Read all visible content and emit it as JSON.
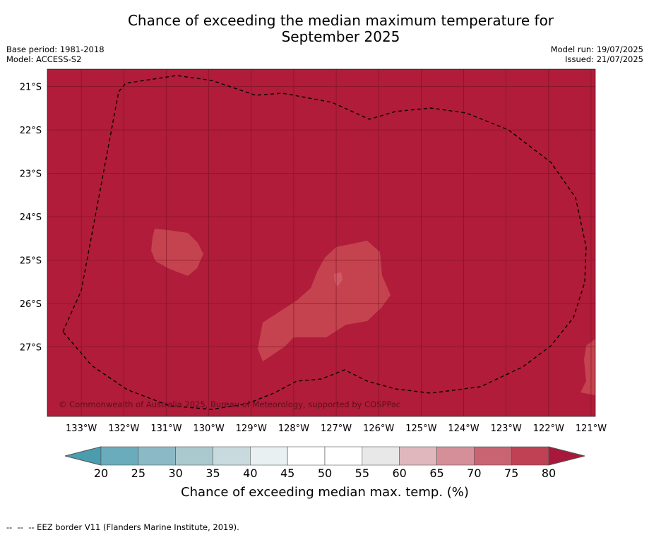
{
  "title": {
    "line1": "Chance of exceeding the median maximum temperature for",
    "line2": "September 2025"
  },
  "meta_left": {
    "base_period": "Base period: 1981-2018",
    "model": "Model: ACCESS-S2"
  },
  "meta_right": {
    "model_run": "Model run: 19/07/2025",
    "issued": "Issued: 21/07/2025"
  },
  "map": {
    "lon_range": [
      -133.8,
      -120.9
    ],
    "lat_range": [
      -28.6,
      -20.6
    ],
    "lat_ticks": [
      "21°S",
      "22°S",
      "23°S",
      "24°S",
      "25°S",
      "26°S",
      "27°S"
    ],
    "lon_ticks": [
      "133°W",
      "132°W",
      "131°W",
      "130°W",
      "129°W",
      "128°W",
      "127°W",
      "126°W",
      "125°W",
      "124°W",
      "123°W",
      "122°W",
      "121°W"
    ],
    "background_color": "#b01c39",
    "patch_color": "#c4434f",
    "copyright": "© Commonwealth of Australia 2025, Bureau of Meteorology, supported by COSPPac",
    "eez_border": "dashed"
  },
  "colorbar": {
    "ticks": [
      "20",
      "25",
      "30",
      "35",
      "40",
      "45",
      "50",
      "55",
      "60",
      "65",
      "70",
      "75",
      "80"
    ],
    "colors": [
      "#6aacbc",
      "#8bbac6",
      "#aac9cf",
      "#c8dadd",
      "#e9f0f2",
      "#ffffff",
      "#ffffff",
      "#e8e8e8",
      "#e0b7bd",
      "#d58f98",
      "#c96572",
      "#bf4153"
    ],
    "under_color": "#4a9dae",
    "over_color": "#a8183a",
    "label": "Chance of exceeding median max. temp. (%)"
  },
  "footer": "--  --  -- EEZ border V11 (Flanders Marine Institute, 2019)."
}
